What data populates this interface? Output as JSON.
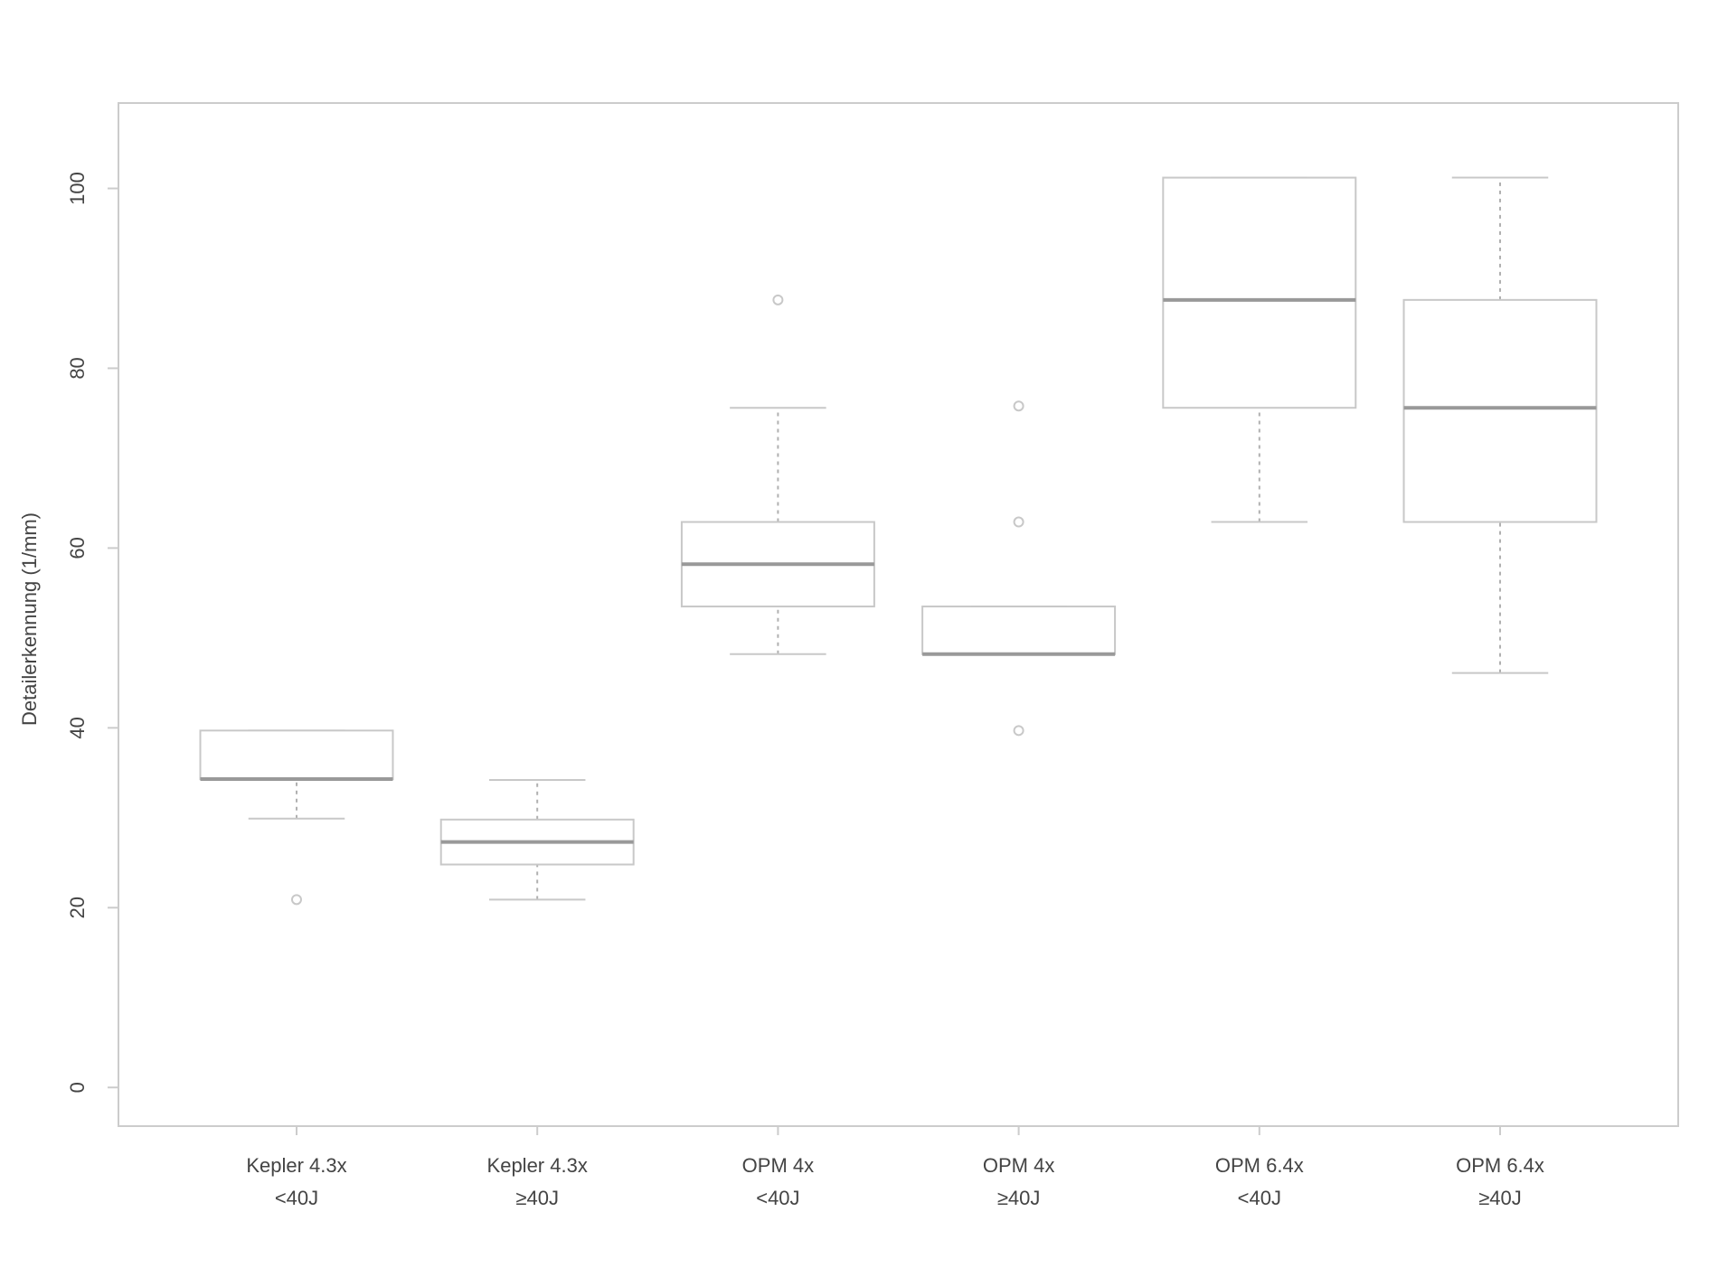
{
  "chart_data": {
    "type": "box",
    "y_label": "Detailerkennung (1/mm)",
    "categories": [
      [
        "Kepler 4.3x",
        "<40J"
      ],
      [
        "Kepler 4.3x",
        "≥40J"
      ],
      [
        "OPM 4x",
        "<40J"
      ],
      [
        "OPM 4x",
        "≥40J"
      ],
      [
        "OPM 6.4x",
        "<40J"
      ],
      [
        "OPM 6.4x",
        "≥40J"
      ]
    ],
    "boxes": [
      {
        "low": 29.9,
        "q1": 34.3,
        "median": 34.3,
        "q3": 39.7,
        "high": 39.7,
        "outliers": [
          20.9
        ]
      },
      {
        "low": 20.9,
        "q1": 24.8,
        "median": 27.3,
        "q3": 29.8,
        "high": 34.2,
        "outliers": []
      },
      {
        "low": 48.2,
        "q1": 53.5,
        "median": 58.2,
        "q3": 62.9,
        "high": 75.6,
        "outliers": [
          87.6
        ]
      },
      {
        "low": 48.2,
        "q1": 48.2,
        "median": 48.2,
        "q3": 53.5,
        "high": 53.5,
        "outliers": [
          75.8,
          62.9,
          39.7
        ]
      },
      {
        "low": 62.9,
        "q1": 75.6,
        "median": 87.6,
        "q3": 101.2,
        "high": 101.2,
        "outliers": []
      },
      {
        "low": 46.1,
        "q1": 62.9,
        "median": 75.6,
        "q3": 87.6,
        "high": 101.2,
        "outliers": []
      }
    ],
    "box_color": "#c8c8c8",
    "median_color": "#999999",
    "whisker_color": "#b0b0b0",
    "ylim": [
      -4.3,
      109.5
    ],
    "yticks": [
      0,
      20,
      40,
      60,
      80,
      100
    ]
  }
}
